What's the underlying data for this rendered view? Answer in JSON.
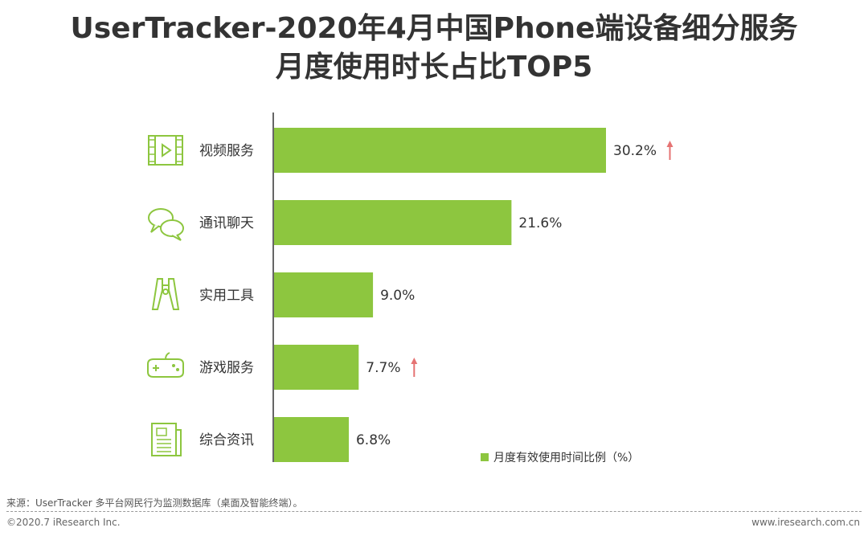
{
  "title": {
    "line1": "UserTracker-2020年4月中国Phone端设备细分服务",
    "line2": "月度使用时长占比TOP5"
  },
  "colors": {
    "bar": "#8DC63F",
    "icon": "#8DC63F",
    "arrow": "#E57373",
    "axis": "#333333",
    "text": "#333333"
  },
  "chart_data": {
    "type": "bar",
    "orientation": "horizontal",
    "categories": [
      "视频服务",
      "通讯聊天",
      "实用工具",
      "游戏服务",
      "综合资讯"
    ],
    "values": [
      30.2,
      21.6,
      9.0,
      7.7,
      6.8
    ],
    "value_labels": [
      "30.2%",
      "21.6%",
      "9.0%",
      "7.7%",
      "6.8%"
    ],
    "up_arrow": [
      true,
      false,
      false,
      true,
      false
    ],
    "icons": [
      "video-icon",
      "chat-icon",
      "tool-icon",
      "gamepad-icon",
      "news-icon"
    ],
    "series": [
      {
        "name": "月度有效使用时间比例（%）",
        "values": [
          30.2,
          21.6,
          9.0,
          7.7,
          6.8
        ]
      }
    ],
    "legend": {
      "label": "月度有效使用时间比例（%）",
      "position": "bottom-right"
    },
    "xlim": [
      0,
      30.2
    ],
    "grid": false
  },
  "source": "来源：UserTracker 多平台网民行为监测数据库（桌面及智能终端）。",
  "footer": {
    "left": "©2020.7 iResearch Inc.",
    "right": "www.iresearch.com.cn"
  }
}
